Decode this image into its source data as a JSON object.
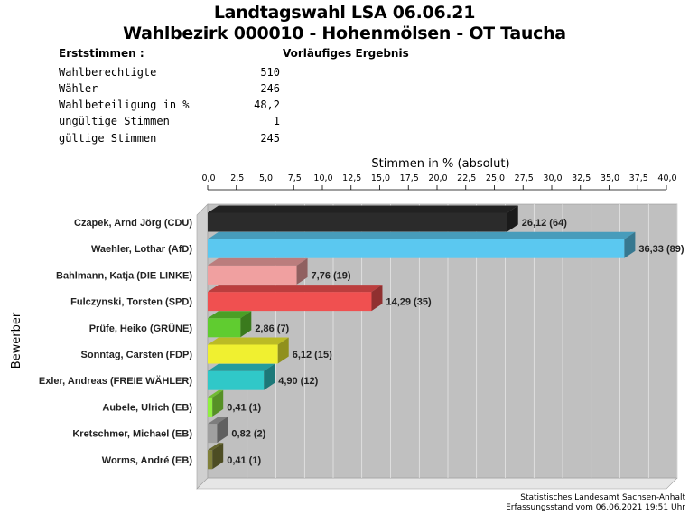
{
  "header": {
    "title_line1": "Landtagswahl LSA 06.06.21",
    "title_line2": "Wahlbezirk 000010 - Hohenmölsen - OT Taucha"
  },
  "stats": {
    "heading": "Erststimmen  :",
    "status": "Vorläufiges Ergebnis",
    "rows": [
      {
        "label": "Wahlberechtigte",
        "value": "510"
      },
      {
        "label": "Wähler",
        "value": "246"
      },
      {
        "label": "Wahlbeteiligung in %",
        "value": "48,2"
      },
      {
        "label": "ungültige Stimmen",
        "value": "1"
      },
      {
        "label": "gültige Stimmen",
        "value": "245"
      }
    ]
  },
  "chart_data": {
    "type": "bar",
    "orientation": "horizontal",
    "title": "Stimmen in % (absolut)",
    "ylabel": "Bewerber",
    "xlim": [
      0,
      40
    ],
    "x_ticks": [
      "0,0",
      "2,5",
      "5,0",
      "7,5",
      "10,0",
      "12,5",
      "15,0",
      "17,5",
      "20,0",
      "22,5",
      "25,0",
      "27,5",
      "30,0",
      "32,5",
      "35,0",
      "37,5",
      "40,0"
    ],
    "categories": [
      "Czapek, Arnd Jörg (CDU)",
      "Waehler, Lothar (AfD)",
      "Bahlmann, Katja (DIE LINKE)",
      "Fulczynski, Torsten (SPD)",
      "Prüfe, Heiko (GRÜNE)",
      "Sonntag, Carsten (FDP)",
      "Exler, Andreas (FREIE WÄHLER)",
      "Aubele, Ulrich (EB)",
      "Kretschmer, Michael (EB)",
      "Worms, André (EB)"
    ],
    "values": [
      26.12,
      36.33,
      7.76,
      14.29,
      2.86,
      6.12,
      4.9,
      0.41,
      0.82,
      0.41
    ],
    "absolute": [
      64,
      89,
      19,
      35,
      7,
      15,
      12,
      1,
      2,
      1
    ],
    "value_labels": [
      "26,12 (64)",
      "36,33 (89)",
      "7,76 (19)",
      "14,29 (35)",
      "2,86 (7)",
      "6,12 (15)",
      "4,90 (12)",
      "0,41 (1)",
      "0,82 (2)",
      "0,41 (1)"
    ],
    "colors": [
      "#2b2b2b",
      "#5bc8f0",
      "#f0a0a0",
      "#f05050",
      "#60cc30",
      "#f0f030",
      "#30c8c8",
      "#90f040",
      "#a0a0a0",
      "#80803a"
    ],
    "grid": true,
    "background": "#c0c0c0"
  },
  "footer": {
    "line1": "Statistisches Landesamt Sachsen-Anhalt",
    "line2": "Erfassungsstand vom 06.06.2021 19:51 Uhr"
  }
}
